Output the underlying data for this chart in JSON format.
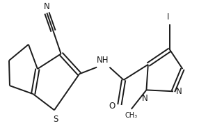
{
  "background_color": "#ffffff",
  "line_color": "#1a1a1a",
  "line_width": 1.4,
  "font_size": 8.5,
  "figsize": [
    2.86,
    1.84
  ],
  "dpi": 100,
  "xlim": [
    0.0,
    5.8
  ],
  "ylim": [
    0.3,
    4.0
  ]
}
